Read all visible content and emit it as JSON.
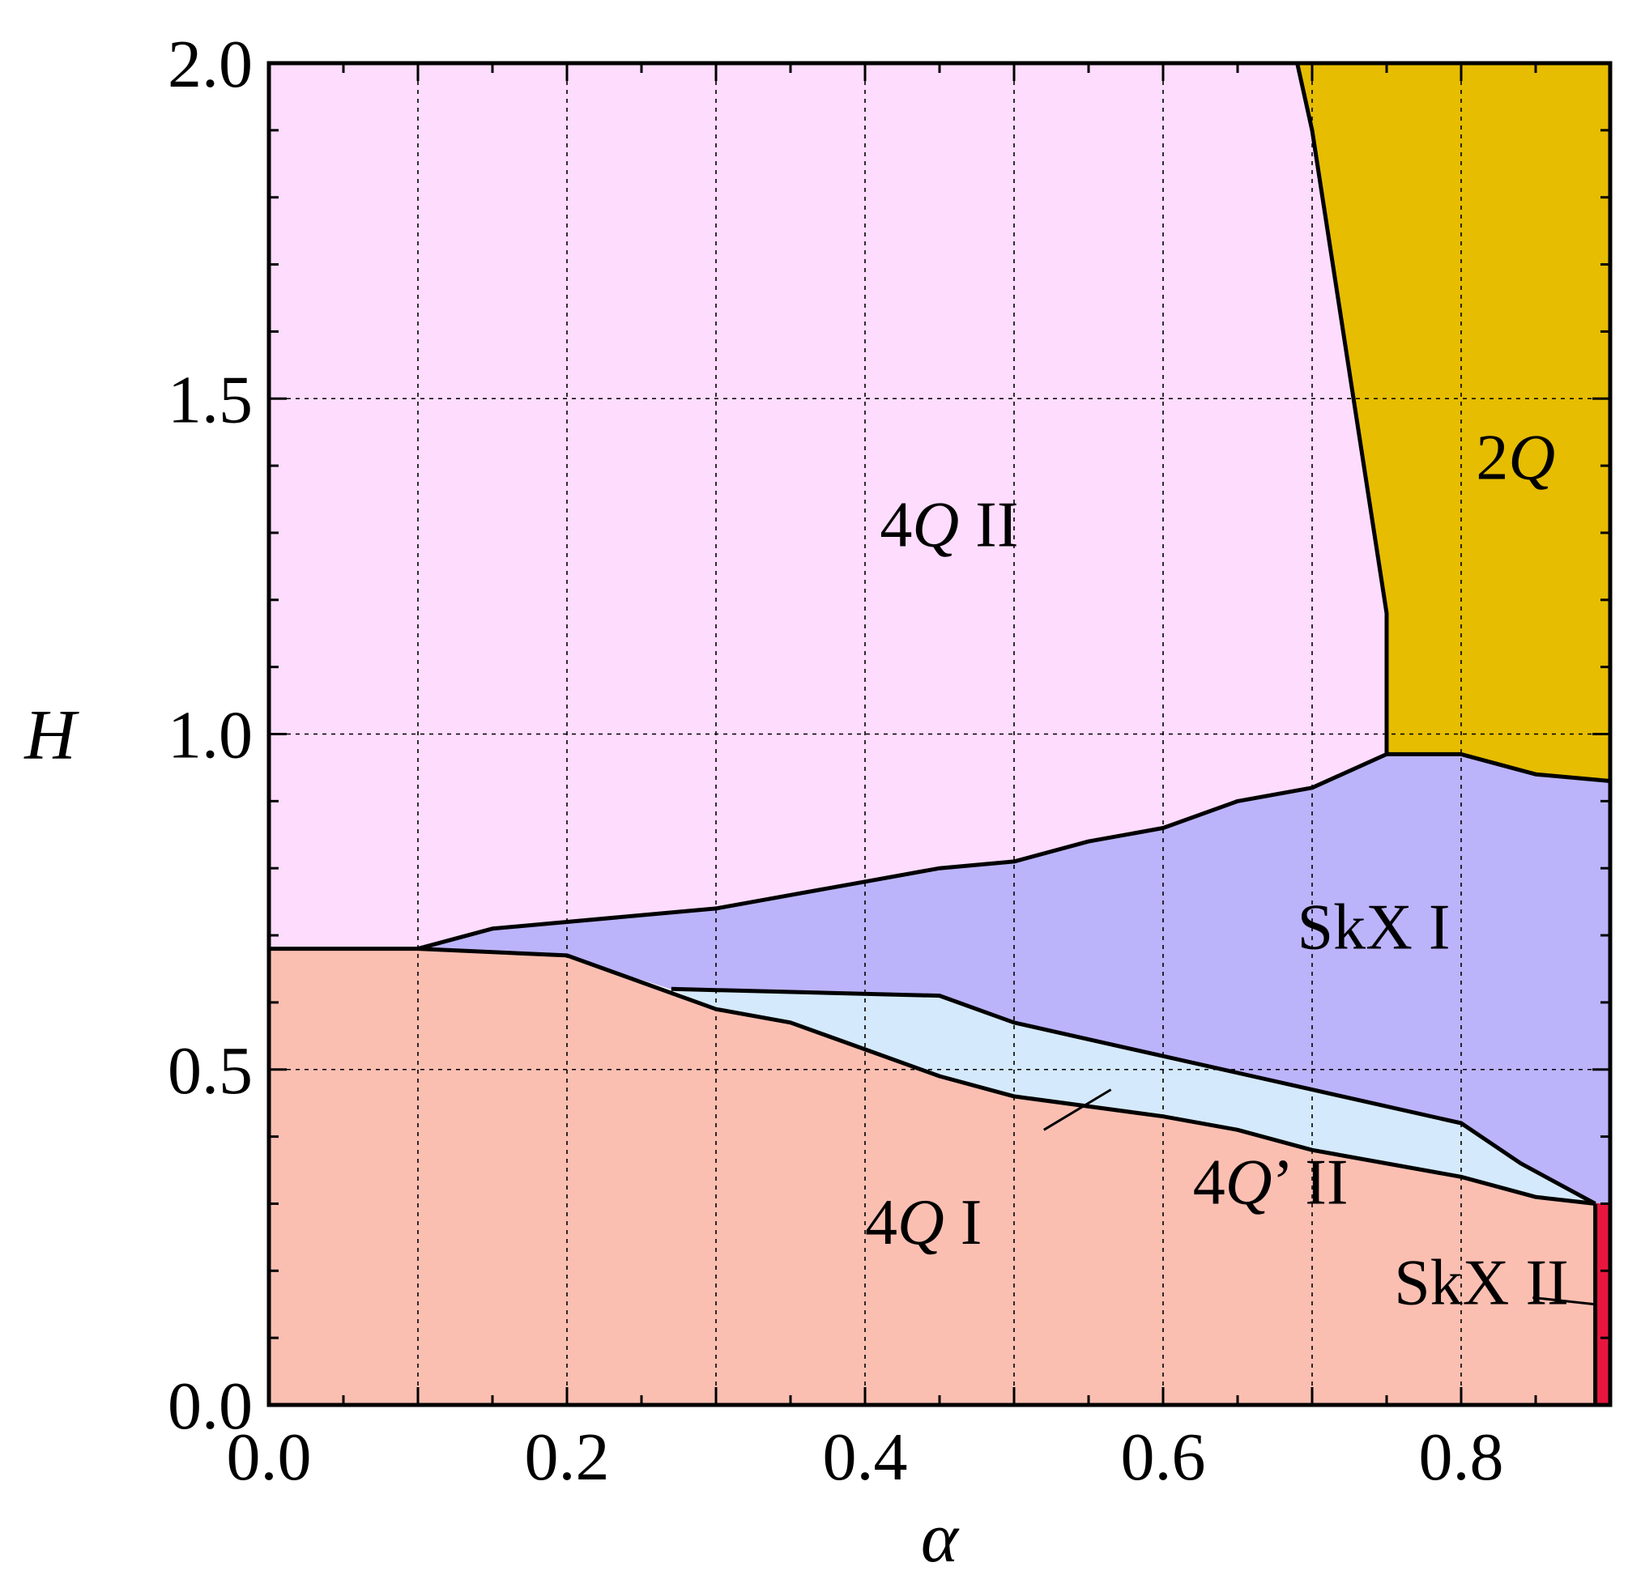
{
  "chart_data": {
    "type": "area",
    "title": "",
    "xlabel": "α",
    "ylabel": "H",
    "xlim": [
      0.0,
      0.9
    ],
    "ylim": [
      0.0,
      2.0
    ],
    "grid": true,
    "x_ticks": [
      0.0,
      0.2,
      0.4,
      0.6,
      0.8
    ],
    "x_tick_labels": [
      "0.0",
      "0.2",
      "0.4",
      "0.6",
      "0.8"
    ],
    "y_ticks": [
      0.0,
      0.5,
      1.0,
      1.5,
      2.0
    ],
    "y_tick_labels": [
      "0.0",
      "0.5",
      "1.0",
      "1.5",
      "2.0"
    ],
    "colors": {
      "4Q I": "#fbbfb2",
      "4Q II": "#fddcfd",
      "4Q' II": "#d4e9fb",
      "SkX I": "#bbb4fb",
      "SkX II": "#e8163f",
      "2Q": "#e6bd00"
    },
    "regions": [
      {
        "name": "4Q I",
        "label_parts": [
          {
            "text": "4",
            "italic": false
          },
          {
            "text": "Q",
            "italic": true
          },
          {
            "text": " I",
            "italic": false
          }
        ],
        "label_pos": [
          0.4,
          0.24
        ],
        "polygon": [
          [
            0,
            0
          ],
          [
            0.89,
            0
          ],
          [
            0.89,
            0.3
          ],
          [
            0.85,
            0.31
          ],
          [
            0.8,
            0.34
          ],
          [
            0.7,
            0.38
          ],
          [
            0.65,
            0.41
          ],
          [
            0.6,
            0.43
          ],
          [
            0.5,
            0.46
          ],
          [
            0.45,
            0.49
          ],
          [
            0.4,
            0.53
          ],
          [
            0.35,
            0.57
          ],
          [
            0.3,
            0.59
          ],
          [
            0.25,
            0.63
          ],
          [
            0.2,
            0.67
          ],
          [
            0.1,
            0.68
          ],
          [
            0,
            0.68
          ]
        ]
      },
      {
        "name": "4Q' II",
        "label_parts": [
          {
            "text": "4",
            "italic": false
          },
          {
            "text": "Q",
            "italic": true
          },
          {
            "text": "’ II",
            "italic": false
          }
        ],
        "label_pos": [
          0.62,
          0.3
        ],
        "polygon": [
          [
            0.27,
            0.62
          ],
          [
            0.45,
            0.61
          ],
          [
            0.5,
            0.57
          ],
          [
            0.6,
            0.52
          ],
          [
            0.7,
            0.47
          ],
          [
            0.8,
            0.42
          ],
          [
            0.84,
            0.36
          ],
          [
            0.89,
            0.3
          ],
          [
            0.85,
            0.31
          ],
          [
            0.8,
            0.34
          ],
          [
            0.7,
            0.38
          ],
          [
            0.65,
            0.41
          ],
          [
            0.6,
            0.43
          ],
          [
            0.5,
            0.46
          ],
          [
            0.45,
            0.49
          ],
          [
            0.4,
            0.53
          ],
          [
            0.35,
            0.57
          ],
          [
            0.3,
            0.59
          ]
        ]
      },
      {
        "name": "SkX I",
        "label_parts": [
          {
            "text": "SkX I",
            "italic": false
          }
        ],
        "label_pos": [
          0.69,
          0.68
        ],
        "polygon": [
          [
            0.1,
            0.68
          ],
          [
            0.15,
            0.71
          ],
          [
            0.2,
            0.72
          ],
          [
            0.3,
            0.74
          ],
          [
            0.35,
            0.76
          ],
          [
            0.4,
            0.78
          ],
          [
            0.45,
            0.8
          ],
          [
            0.5,
            0.81
          ],
          [
            0.55,
            0.84
          ],
          [
            0.6,
            0.86
          ],
          [
            0.65,
            0.9
          ],
          [
            0.7,
            0.92
          ],
          [
            0.75,
            0.97
          ],
          [
            0.8,
            0.97
          ],
          [
            0.85,
            0.94
          ],
          [
            0.9,
            0.93
          ],
          [
            0.9,
            0.3
          ],
          [
            0.89,
            0.3
          ],
          [
            0.84,
            0.36
          ],
          [
            0.8,
            0.42
          ],
          [
            0.7,
            0.47
          ],
          [
            0.6,
            0.52
          ],
          [
            0.5,
            0.57
          ],
          [
            0.45,
            0.61
          ],
          [
            0.27,
            0.62
          ],
          [
            0.2,
            0.67
          ]
        ]
      },
      {
        "name": "4Q II",
        "label_parts": [
          {
            "text": "4",
            "italic": false
          },
          {
            "text": "Q",
            "italic": true
          },
          {
            "text": " II",
            "italic": false
          }
        ],
        "label_pos": [
          0.41,
          1.28
        ],
        "polygon": [
          [
            0,
            0.68
          ],
          [
            0.1,
            0.68
          ],
          [
            0.15,
            0.71
          ],
          [
            0.2,
            0.72
          ],
          [
            0.3,
            0.74
          ],
          [
            0.35,
            0.76
          ],
          [
            0.4,
            0.78
          ],
          [
            0.45,
            0.8
          ],
          [
            0.5,
            0.81
          ],
          [
            0.55,
            0.84
          ],
          [
            0.6,
            0.86
          ],
          [
            0.65,
            0.9
          ],
          [
            0.7,
            0.92
          ],
          [
            0.75,
            0.97
          ],
          [
            0.75,
            1.18
          ],
          [
            0.7,
            1.9
          ],
          [
            0.69,
            2.0
          ],
          [
            0,
            2.0
          ]
        ]
      },
      {
        "name": "2Q",
        "label_parts": [
          {
            "text": "2",
            "italic": false
          },
          {
            "text": "Q",
            "italic": true
          }
        ],
        "label_pos": [
          0.81,
          1.38
        ],
        "polygon": [
          [
            0.69,
            2.0
          ],
          [
            0.9,
            2.0
          ],
          [
            0.9,
            0.93
          ],
          [
            0.85,
            0.94
          ],
          [
            0.8,
            0.97
          ],
          [
            0.75,
            0.97
          ],
          [
            0.75,
            1.18
          ],
          [
            0.7,
            1.9
          ]
        ]
      },
      {
        "name": "SkX II",
        "label_parts": [
          {
            "text": "SkX II",
            "italic": false
          }
        ],
        "label_pos": [
          0.755,
          0.15
        ],
        "polygon": [
          [
            0.89,
            0
          ],
          [
            0.9,
            0
          ],
          [
            0.9,
            0.3
          ],
          [
            0.89,
            0.3
          ]
        ]
      }
    ],
    "boundaries": [
      [
        [
          0,
          0.68
        ],
        [
          0.1,
          0.68
        ],
        [
          0.2,
          0.67
        ],
        [
          0.25,
          0.63
        ],
        [
          0.3,
          0.59
        ],
        [
          0.35,
          0.57
        ],
        [
          0.4,
          0.53
        ],
        [
          0.45,
          0.49
        ],
        [
          0.5,
          0.46
        ],
        [
          0.6,
          0.43
        ],
        [
          0.65,
          0.41
        ],
        [
          0.7,
          0.38
        ],
        [
          0.8,
          0.34
        ],
        [
          0.85,
          0.31
        ],
        [
          0.89,
          0.3
        ]
      ],
      [
        [
          0.27,
          0.62
        ],
        [
          0.45,
          0.61
        ],
        [
          0.5,
          0.57
        ],
        [
          0.6,
          0.52
        ],
        [
          0.7,
          0.47
        ],
        [
          0.8,
          0.42
        ],
        [
          0.84,
          0.36
        ],
        [
          0.89,
          0.3
        ]
      ],
      [
        [
          0.1,
          0.68
        ],
        [
          0.15,
          0.71
        ],
        [
          0.2,
          0.72
        ],
        [
          0.3,
          0.74
        ],
        [
          0.35,
          0.76
        ],
        [
          0.4,
          0.78
        ],
        [
          0.45,
          0.8
        ],
        [
          0.5,
          0.81
        ],
        [
          0.55,
          0.84
        ],
        [
          0.6,
          0.86
        ],
        [
          0.65,
          0.9
        ],
        [
          0.7,
          0.92
        ],
        [
          0.75,
          0.97
        ],
        [
          0.8,
          0.97
        ],
        [
          0.85,
          0.94
        ],
        [
          0.9,
          0.93
        ]
      ],
      [
        [
          0.69,
          2.0
        ],
        [
          0.7,
          1.9
        ],
        [
          0.75,
          1.18
        ],
        [
          0.75,
          0.97
        ]
      ],
      [
        [
          0.89,
          0.3
        ],
        [
          0.89,
          0
        ]
      ]
    ],
    "leader_lines": [
      {
        "from": [
          0.52,
          0.41
        ],
        "to": [
          0.565,
          0.47
        ]
      },
      {
        "from": [
          0.848,
          0.16
        ],
        "to": [
          0.89,
          0.15
        ]
      }
    ]
  }
}
